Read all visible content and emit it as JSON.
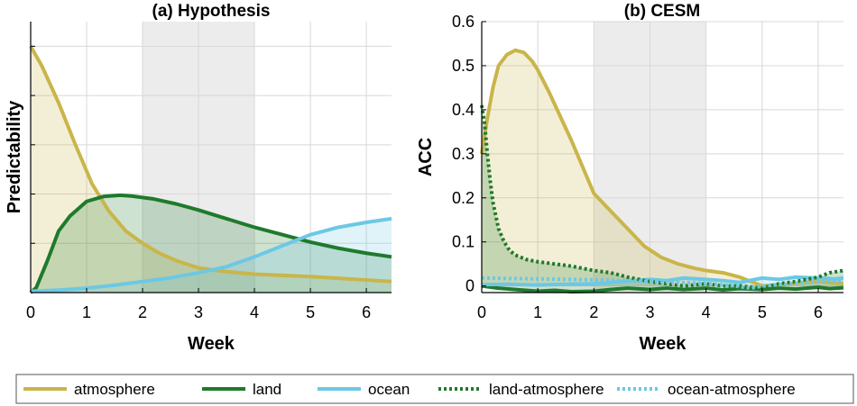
{
  "chart_data": [
    {
      "type": "line",
      "title": "(a) Hypothesis",
      "xlabel": "Week",
      "ylabel": "Predictability",
      "xlim": [
        0,
        6.45
      ],
      "ylim": [
        0,
        1.1
      ],
      "y_ticks_labeled": false,
      "xticks": [
        "0",
        "1",
        "2",
        "3",
        "4",
        "5",
        "6"
      ],
      "grid": true,
      "shaded_region": {
        "x": [
          2,
          4
        ]
      },
      "series": [
        {
          "name": "atmosphere",
          "color": "#c9b54a",
          "style": "solid",
          "fill": true,
          "x": [
            0,
            0.2,
            0.5,
            0.8,
            1.1,
            1.4,
            1.7,
            2.0,
            2.3,
            2.6,
            3.0,
            3.5,
            4.0,
            5.0,
            6.45
          ],
          "y": [
            1.0,
            0.92,
            0.77,
            0.6,
            0.44,
            0.33,
            0.25,
            0.2,
            0.16,
            0.13,
            0.1,
            0.085,
            0.075,
            0.065,
            0.045
          ]
        },
        {
          "name": "land",
          "color": "#1f7a2c",
          "style": "solid",
          "fill": true,
          "x": [
            0,
            0.1,
            0.3,
            0.5,
            0.7,
            1.0,
            1.3,
            1.6,
            1.8,
            2.2,
            2.6,
            3.0,
            3.5,
            4.0,
            4.5,
            5.0,
            5.5,
            6.0,
            6.45
          ],
          "y": [
            0,
            0.02,
            0.13,
            0.25,
            0.31,
            0.37,
            0.39,
            0.395,
            0.392,
            0.38,
            0.36,
            0.335,
            0.3,
            0.265,
            0.235,
            0.205,
            0.18,
            0.16,
            0.145
          ]
        },
        {
          "name": "ocean",
          "color": "#6cc8e4",
          "style": "solid",
          "fill": true,
          "x": [
            0,
            0.5,
            1.0,
            1.5,
            2.0,
            2.5,
            3.0,
            3.5,
            4.0,
            4.5,
            5.0,
            5.5,
            6.0,
            6.45
          ],
          "y": [
            0.005,
            0.01,
            0.018,
            0.03,
            0.045,
            0.06,
            0.08,
            0.105,
            0.145,
            0.19,
            0.235,
            0.265,
            0.285,
            0.3
          ]
        }
      ]
    },
    {
      "type": "line",
      "title": "(b) CESM",
      "xlabel": "Week",
      "ylabel": "ACC",
      "xlim": [
        0,
        6.45
      ],
      "ylim": [
        -0.015,
        0.6
      ],
      "yticks": [
        "0",
        "0.1",
        "0.2",
        "0.3",
        "0.4",
        "0.5",
        "0.6"
      ],
      "xticks": [
        "0",
        "1",
        "2",
        "3",
        "4",
        "5",
        "6"
      ],
      "grid": true,
      "shaded_region": {
        "x": [
          2,
          4
        ]
      },
      "series": [
        {
          "name": "atmosphere",
          "color": "#c9b54a",
          "style": "solid",
          "fill": true,
          "x": [
            0,
            0.1,
            0.2,
            0.3,
            0.45,
            0.6,
            0.75,
            0.9,
            1.0,
            1.2,
            1.4,
            1.6,
            1.8,
            2.0,
            2.3,
            2.6,
            2.9,
            3.2,
            3.5,
            3.8,
            4.0,
            4.3,
            4.6,
            5.0,
            5.5,
            6.0,
            6.45
          ],
          "y": [
            0.3,
            0.38,
            0.45,
            0.5,
            0.525,
            0.535,
            0.53,
            0.51,
            0.49,
            0.44,
            0.385,
            0.33,
            0.27,
            0.21,
            0.17,
            0.13,
            0.09,
            0.065,
            0.05,
            0.04,
            0.035,
            0.03,
            0.02,
            0.0,
            0.005,
            0.01,
            0.005
          ]
        },
        {
          "name": "land",
          "color": "#1f7a2c",
          "style": "solid",
          "fill": true,
          "x": [
            0,
            0.3,
            0.6,
            1.0,
            1.3,
            1.6,
            2.0,
            2.3,
            2.6,
            3.0,
            3.3,
            3.6,
            4.0,
            4.3,
            4.6,
            5.0,
            5.3,
            5.6,
            6.0,
            6.2,
            6.45
          ],
          "y": [
            0,
            -0.005,
            -0.008,
            -0.012,
            -0.01,
            -0.013,
            -0.012,
            -0.008,
            -0.005,
            -0.008,
            -0.005,
            -0.008,
            -0.005,
            -0.009,
            -0.006,
            -0.008,
            -0.005,
            -0.007,
            -0.003,
            -0.006,
            -0.004
          ]
        },
        {
          "name": "ocean",
          "color": "#6cc8e4",
          "style": "solid",
          "fill": true,
          "x": [
            0,
            0.5,
            1.0,
            1.5,
            2.0,
            2.5,
            3.0,
            3.3,
            3.6,
            4.0,
            4.3,
            4.6,
            5.0,
            5.3,
            5.6,
            6.0,
            6.3,
            6.45
          ],
          "y": [
            0.003,
            0.004,
            0.002,
            0.004,
            0.005,
            0.01,
            0.015,
            0.012,
            0.018,
            0.015,
            0.012,
            0.008,
            0.018,
            0.015,
            0.02,
            0.018,
            0.016,
            0.018
          ]
        },
        {
          "name": "land-atmosphere",
          "color": "#1f7a2c",
          "style": "dotted",
          "fill": true,
          "x": [
            0,
            0.05,
            0.1,
            0.15,
            0.2,
            0.3,
            0.4,
            0.5,
            0.6,
            0.8,
            1.0,
            1.3,
            1.6,
            2.0,
            2.3,
            2.6,
            3.0,
            3.3,
            3.6,
            4.0,
            4.3,
            4.6,
            5.0,
            5.3,
            5.6,
            6.0,
            6.2,
            6.45
          ],
          "y": [
            0.41,
            0.37,
            0.3,
            0.24,
            0.19,
            0.13,
            0.1,
            0.08,
            0.07,
            0.06,
            0.055,
            0.05,
            0.045,
            0.035,
            0.03,
            0.02,
            0.01,
            0.005,
            0.0,
            0.005,
            0.0,
            0.0,
            -0.005,
            0.005,
            0.01,
            0.02,
            0.03,
            0.035
          ]
        },
        {
          "name": "ocean-atmosphere",
          "color": "#6cc8e4",
          "style": "dotted",
          "fill": false,
          "x": [
            0,
            0.5,
            1.0,
            1.5,
            2.0,
            2.5,
            3.0,
            3.5,
            4.0,
            4.5,
            4.8,
            5.0,
            5.5,
            6.0,
            6.45
          ],
          "y": [
            0.018,
            0.017,
            0.016,
            0.015,
            0.014,
            0.012,
            0.01,
            0.008,
            0.006,
            0.0,
            -0.005,
            0.0,
            0.005,
            0.01,
            0.012
          ]
        }
      ]
    }
  ],
  "legend": {
    "placement": "bottom",
    "entries": [
      {
        "label": "atmosphere",
        "color": "#c9b54a",
        "style": "solid"
      },
      {
        "label": "land",
        "color": "#1f7a2c",
        "style": "solid"
      },
      {
        "label": "ocean",
        "color": "#6cc8e4",
        "style": "solid"
      },
      {
        "label": "land-atmosphere",
        "color": "#1f7a2c",
        "style": "dotted"
      },
      {
        "label": "ocean-atmosphere",
        "color": "#6cc8e4",
        "style": "dotted"
      }
    ]
  }
}
